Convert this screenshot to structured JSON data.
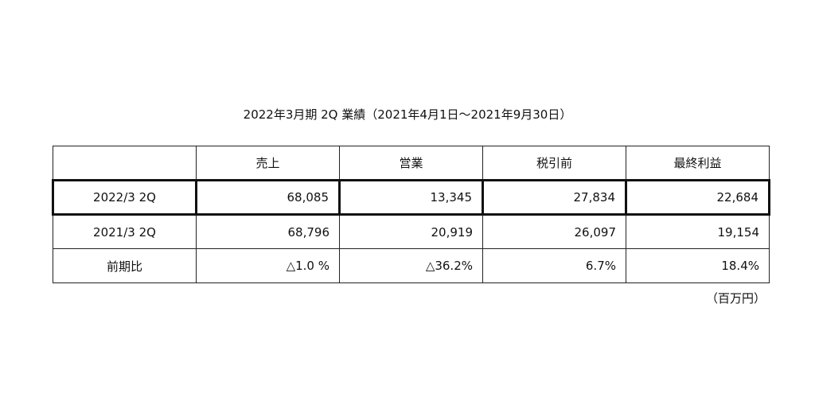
{
  "title": "2022年3月期 2Q 業績（2021年4月1日〜2021年9月30日）",
  "table": {
    "columns": [
      "売上",
      "営業",
      "税引前",
      "最終利益"
    ],
    "rows": [
      {
        "label": "2022/3 2Q",
        "values": [
          "68,085",
          "13,345",
          "27,834",
          "22,684"
        ]
      },
      {
        "label": "2021/3 2Q",
        "values": [
          "68,796",
          "20,919",
          "26,097",
          "19,154"
        ]
      },
      {
        "label": "前期比",
        "values": [
          "△1.0 %",
          "△36.2%",
          "6.7%",
          "18.4%"
        ]
      }
    ],
    "unit": "（百万円）"
  }
}
